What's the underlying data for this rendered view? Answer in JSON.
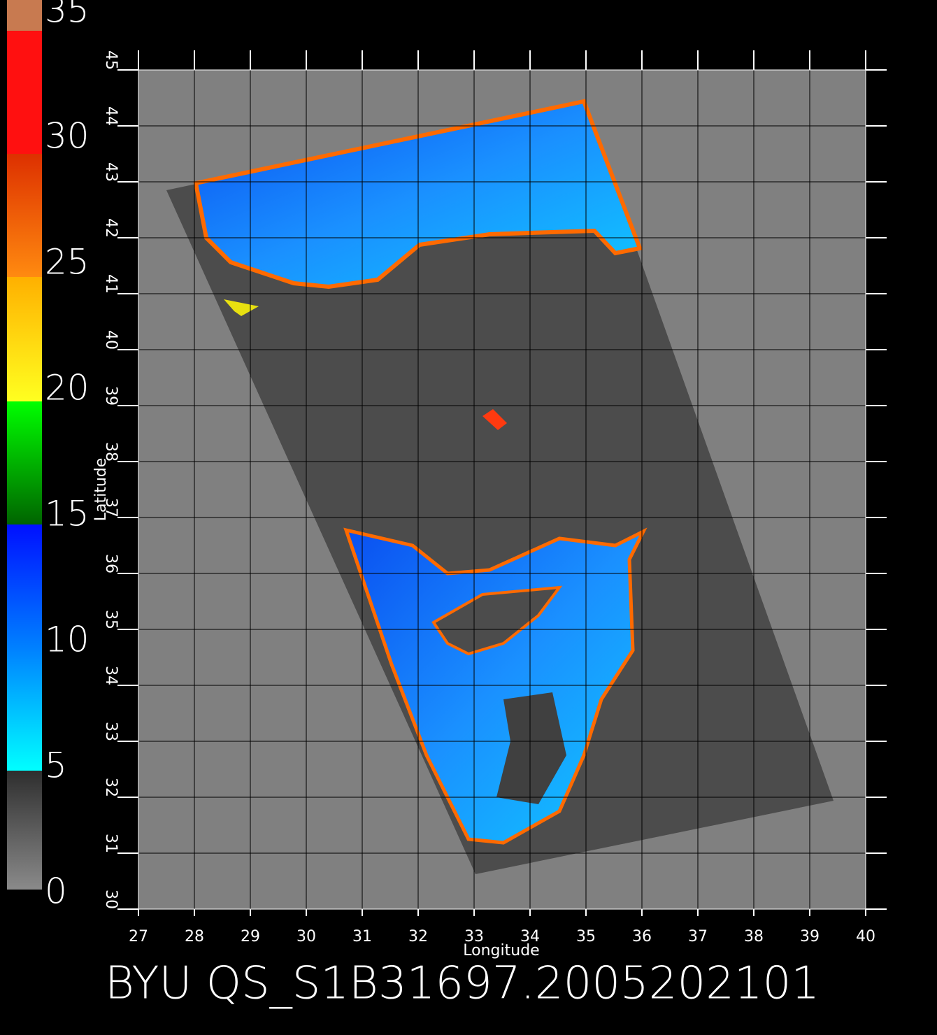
{
  "colorbar": {
    "ticks": [
      0,
      5,
      10,
      15,
      20,
      25,
      30,
      35
    ]
  },
  "map": {
    "x_label": "Longitude",
    "y_label": "Latitude",
    "lon_ticks": [
      27,
      28,
      29,
      30,
      31,
      32,
      33,
      34,
      35,
      36,
      37,
      38,
      39,
      40
    ],
    "lat_ticks": [
      30,
      31,
      32,
      33,
      34,
      35,
      36,
      37,
      38,
      39,
      40,
      41,
      42,
      43,
      44,
      45
    ]
  },
  "title": "BYU QS_S1B31697.2005202101"
}
